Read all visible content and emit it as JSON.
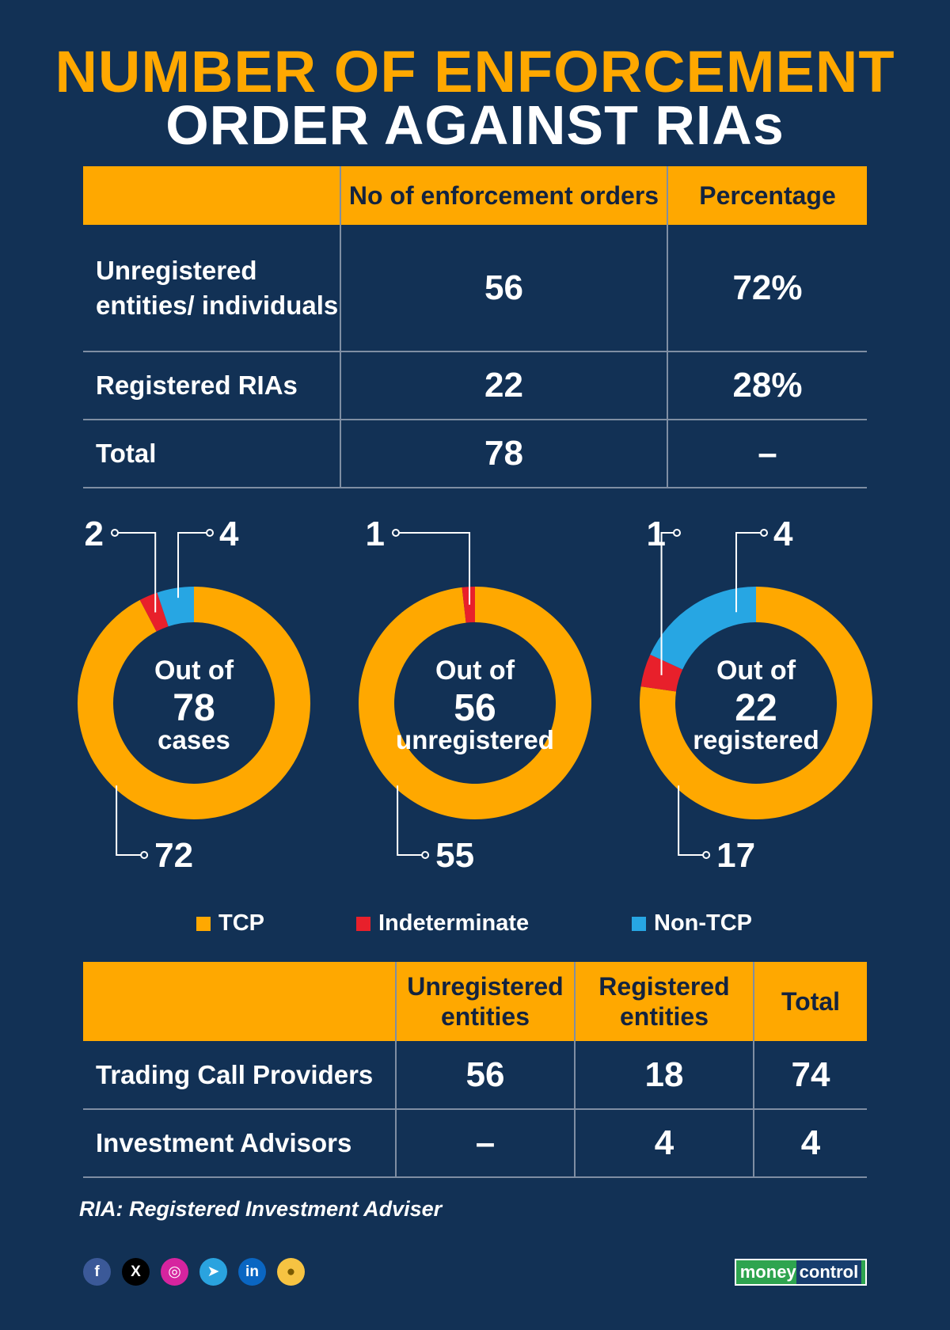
{
  "title": {
    "line1": "NUMBER OF ENFORCEMENT",
    "line2": "ORDER AGAINST RIAs"
  },
  "table1": {
    "headers": [
      "",
      "No of enforcement orders",
      "Percentage"
    ],
    "rows": [
      {
        "label": "Unregistered entities/ individuals",
        "orders": "56",
        "percentage": "72%"
      },
      {
        "label": "Registered RIAs",
        "orders": "22",
        "percentage": "28%"
      },
      {
        "label": "Total",
        "orders": "78",
        "percentage": "–"
      }
    ]
  },
  "colors": {
    "tcp": "#ffa800",
    "indeterminate": "#e8202b",
    "non_tcp": "#27a6e3",
    "background": "#123155"
  },
  "chart_data": [
    {
      "type": "pie",
      "donut": true,
      "center_text": [
        "Out of",
        "78",
        "cases"
      ],
      "slices": [
        {
          "label": "TCP",
          "value": 72
        },
        {
          "label": "Indeterminate",
          "value": 2
        },
        {
          "label": "Non-TCP",
          "value": 4
        }
      ]
    },
    {
      "type": "pie",
      "donut": true,
      "center_text": [
        "Out of",
        "56",
        "unregistered"
      ],
      "slices": [
        {
          "label": "TCP",
          "value": 55
        },
        {
          "label": "Indeterminate",
          "value": 1
        },
        {
          "label": "Non-TCP",
          "value": 0
        }
      ]
    },
    {
      "type": "pie",
      "donut": true,
      "center_text": [
        "Out of",
        "22",
        "registered"
      ],
      "slices": [
        {
          "label": "TCP",
          "value": 17
        },
        {
          "label": "Indeterminate",
          "value": 1
        },
        {
          "label": "Non-TCP",
          "value": 4
        }
      ]
    }
  ],
  "legend": [
    {
      "label": "TCP",
      "color": "#ffa800"
    },
    {
      "label": "Indeterminate",
      "color": "#e8202b"
    },
    {
      "label": "Non-TCP",
      "color": "#27a6e3"
    }
  ],
  "table2": {
    "headers": [
      "",
      "Unregistered entities",
      "Registered entities",
      "Total"
    ],
    "rows": [
      {
        "label": "Trading Call Providers",
        "unregistered": "56",
        "registered": "18",
        "total": "74"
      },
      {
        "label": "Investment Advisors",
        "unregistered": "–",
        "registered": "4",
        "total": "4"
      }
    ]
  },
  "footnote": "RIA: Registered Investment Adviser",
  "socials": [
    {
      "name": "facebook",
      "glyph": "f",
      "color": "#3b5998"
    },
    {
      "name": "x",
      "glyph": "X",
      "color": "#000000"
    },
    {
      "name": "instagram",
      "glyph": "◎",
      "color": "#d6249f"
    },
    {
      "name": "telegram",
      "glyph": "➤",
      "color": "#2aa3df"
    },
    {
      "name": "linkedin",
      "glyph": "in",
      "color": "#0a66c2"
    },
    {
      "name": "koo",
      "glyph": "●",
      "color": "#f6c342"
    }
  ],
  "brand": {
    "part1": "money",
    "part2": "control"
  }
}
